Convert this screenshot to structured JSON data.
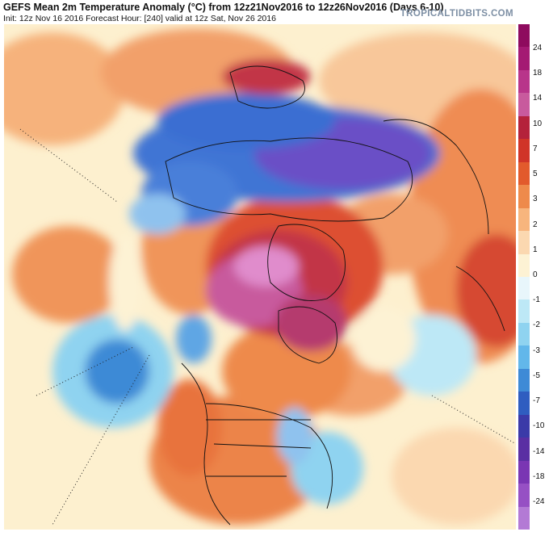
{
  "header": {
    "title": "GEFS Mean 2m Temperature Anomaly (°C) from 12z21Nov2016 to 12z26Nov2016 (Days 6-10)",
    "subtitle": "Init: 12z Nov 16 2016   Forecast Hour: [240]   valid at 12z Sat, Nov 26 2016",
    "brand": "TROPICALTIDBITS.COM"
  },
  "map": {
    "description_name": "northern-hemisphere-temperature-anomaly-map"
  },
  "colorbar": {
    "labels": [
      "24",
      "18",
      "14",
      "10",
      "7",
      "5",
      "3",
      "2",
      "1",
      "0",
      "-1",
      "-2",
      "-3",
      "-5",
      "-7",
      "-10",
      "-14",
      "-18",
      "-24"
    ],
    "colors": [
      "#8e0b5e",
      "#a41a73",
      "#b8358a",
      "#c85a9d",
      "#b4223b",
      "#d03428",
      "#e25a2c",
      "#ee8a4b",
      "#f7b57d",
      "#fbd8b0",
      "#fdf2d4",
      "#e8f6fb",
      "#bde8f6",
      "#8fd3f0",
      "#62b7ea",
      "#3e8ad6",
      "#2f5dc0",
      "#3b3aa8",
      "#5a2fa3",
      "#7a36b3",
      "#9650c4",
      "#b37ad5"
    ]
  }
}
